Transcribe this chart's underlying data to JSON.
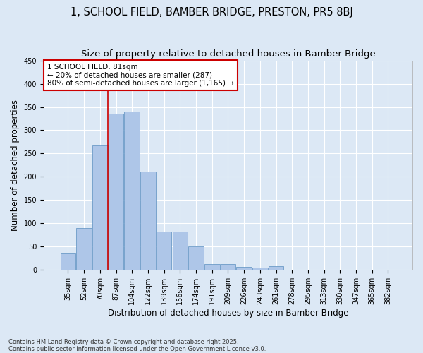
{
  "title": "1, SCHOOL FIELD, BAMBER BRIDGE, PRESTON, PR5 8BJ",
  "subtitle": "Size of property relative to detached houses in Bamber Bridge",
  "xlabel": "Distribution of detached houses by size in Bamber Bridge",
  "ylabel": "Number of detached properties",
  "footnote": "Contains HM Land Registry data © Crown copyright and database right 2025.\nContains public sector information licensed under the Open Government Licence v3.0.",
  "bar_labels": [
    "35sqm",
    "52sqm",
    "70sqm",
    "87sqm",
    "104sqm",
    "122sqm",
    "139sqm",
    "156sqm",
    "174sqm",
    "191sqm",
    "209sqm",
    "226sqm",
    "243sqm",
    "261sqm",
    "278sqm",
    "295sqm",
    "313sqm",
    "330sqm",
    "347sqm",
    "365sqm",
    "382sqm"
  ],
  "bar_values": [
    35,
    90,
    268,
    335,
    340,
    212,
    83,
    83,
    50,
    12,
    13,
    7,
    5,
    8,
    0,
    0,
    0,
    0,
    0,
    0,
    1
  ],
  "bar_color": "#aec6e8",
  "bar_edge_color": "#5a8fc0",
  "background_color": "#dce8f5",
  "grid_color": "#ffffff",
  "vline_color": "#cc0000",
  "vline_x": 2.5,
  "annotation_text": "1 SCHOOL FIELD: 81sqm\n← 20% of detached houses are smaller (287)\n80% of semi-detached houses are larger (1,165) →",
  "annotation_box_color": "#ffffff",
  "annotation_box_edge": "#cc0000",
  "ylim": [
    0,
    450
  ],
  "title_fontsize": 10.5,
  "subtitle_fontsize": 9.5,
  "tick_fontsize": 7,
  "axis_label_fontsize": 8.5,
  "footnote_fontsize": 6,
  "yticks": [
    0,
    50,
    100,
    150,
    200,
    250,
    300,
    350,
    400,
    450
  ]
}
